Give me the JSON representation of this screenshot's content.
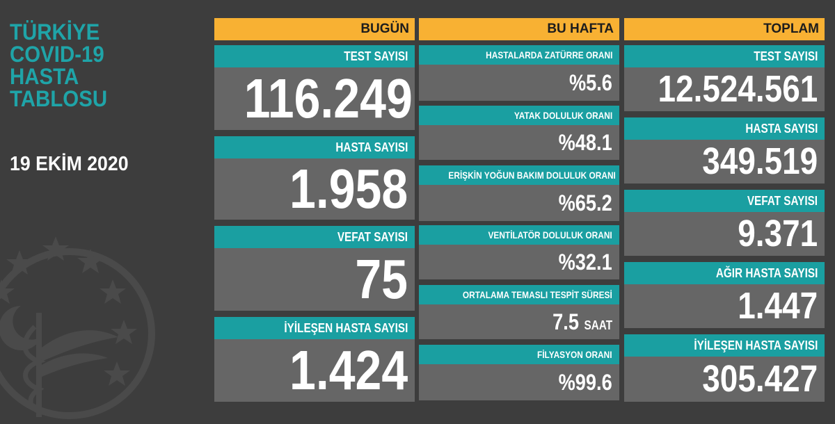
{
  "sidebar": {
    "title_lines": [
      "TÜRKİYE",
      "COVID-19",
      "HASTA",
      "TABLOSU"
    ],
    "date": "19 EKİM 2020"
  },
  "colors": {
    "background": "#3d3d3d",
    "header": "#f8b133",
    "label": "#1a9fa1",
    "value_bg": "#666666",
    "title": "#1fa4a8"
  },
  "today": {
    "header": "BUGÜN",
    "items": [
      {
        "label": "TEST SAYISI",
        "value": "116.249"
      },
      {
        "label": "HASTA SAYISI",
        "value": "1.958"
      },
      {
        "label": "VEFAT SAYISI",
        "value": "75"
      },
      {
        "label": "İYİLEŞEN HASTA SAYISI",
        "value": "1.424"
      }
    ]
  },
  "week": {
    "header": "BU HAFTA",
    "items": [
      {
        "label": "HASTALARDA ZATÜRRE ORANI",
        "value": "%5.6"
      },
      {
        "label": "YATAK DOLULUK ORANI",
        "value": "%48.1"
      },
      {
        "label": "ERİŞKİN YOĞUN BAKIM DOLULUK ORANI",
        "value": "%65.2"
      },
      {
        "label": "VENTİLATÖR DOLULUK ORANI",
        "value": "%32.1"
      },
      {
        "label": "ORTALAMA TEMASLI TESPİT SÜRESİ",
        "value": "7.5",
        "unit": "SAAT"
      },
      {
        "label": "FİLYASYON ORANI",
        "value": "%99.6"
      }
    ]
  },
  "total": {
    "header": "TOPLAM",
    "items": [
      {
        "label": "TEST SAYISI",
        "value": "12.524.561"
      },
      {
        "label": "HASTA SAYISI",
        "value": "349.519"
      },
      {
        "label": "VEFAT SAYISI",
        "value": "9.371"
      },
      {
        "label": "AĞIR HASTA SAYISI",
        "value": "1.447"
      },
      {
        "label": "İYİLEŞEN HASTA SAYISI",
        "value": "305.427"
      }
    ]
  }
}
